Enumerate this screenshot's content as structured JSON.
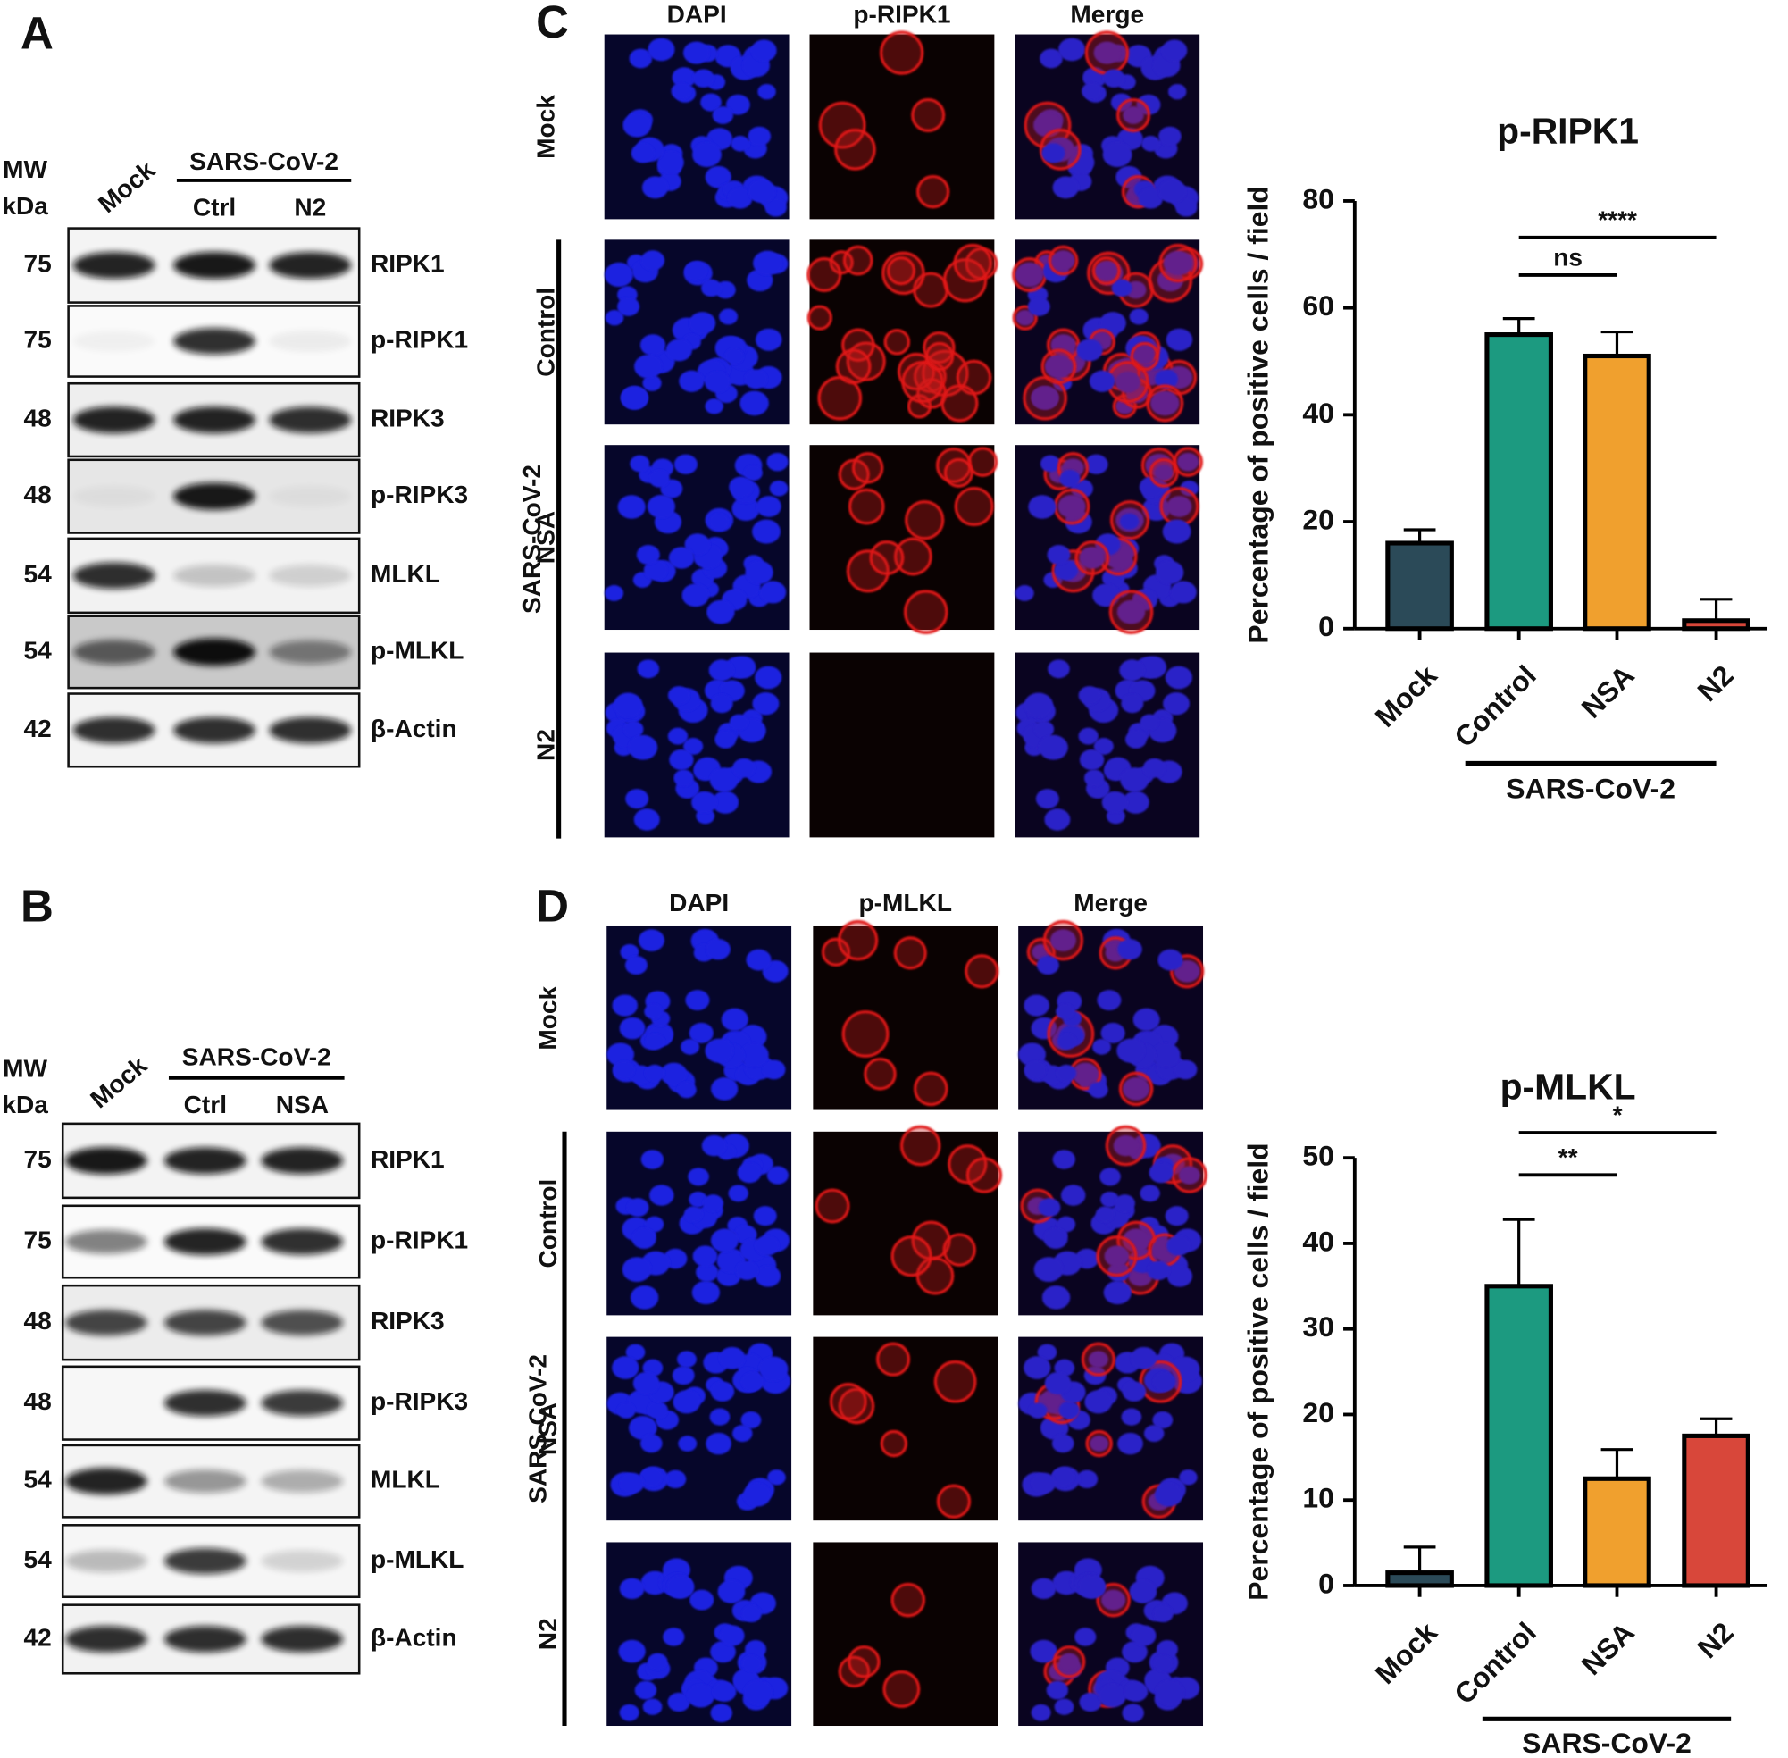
{
  "panels": {
    "A": {
      "label": "A",
      "mw_header": [
        "MW",
        "kDa"
      ],
      "lanes": [
        "Mock",
        "Ctrl",
        "N2"
      ],
      "lane_group": "SARS-CoV-2",
      "rows": [
        {
          "mw": 75,
          "protein": "RIPK1"
        },
        {
          "mw": 75,
          "protein": "p-RIPK1"
        },
        {
          "mw": 48,
          "protein": "RIPK3"
        },
        {
          "mw": 48,
          "protein": "p-RIPK3"
        },
        {
          "mw": 54,
          "protein": "MLKL"
        },
        {
          "mw": 54,
          "protein": "p-MLKL"
        },
        {
          "mw": 42,
          "protein": "β-Actin"
        }
      ]
    },
    "B": {
      "label": "B",
      "mw_header": [
        "MW",
        "kDa"
      ],
      "lanes": [
        "Mock",
        "Ctrl",
        "NSA"
      ],
      "lane_group": "SARS-CoV-2",
      "rows": [
        {
          "mw": 75,
          "protein": "RIPK1"
        },
        {
          "mw": 75,
          "protein": "p-RIPK1"
        },
        {
          "mw": 48,
          "protein": "RIPK3"
        },
        {
          "mw": 48,
          "protein": "p-RIPK3"
        },
        {
          "mw": 54,
          "protein": "MLKL"
        },
        {
          "mw": 54,
          "protein": "p-MLKL"
        },
        {
          "mw": 42,
          "protein": "β-Actin"
        }
      ]
    },
    "C": {
      "label": "C",
      "columns": [
        "DAPI",
        "p-RIPK1",
        "Merge"
      ],
      "rows": [
        "Mock",
        "Control",
        "NSA",
        "N2"
      ],
      "row_group": "SARS-CoV-2"
    },
    "D": {
      "label": "D",
      "columns": [
        "DAPI",
        "p-MLKL",
        "Merge"
      ],
      "rows": [
        "Mock",
        "Control",
        "NSA",
        "N2"
      ],
      "row_group": "SARS-CoV-2"
    }
  },
  "chart_data": [
    {
      "type": "bar",
      "title": "p-RIPK1",
      "ylabel": "Percentage of positive cells / field",
      "categories": [
        "Mock",
        "Control",
        "NSA",
        "N2"
      ],
      "values": [
        16,
        55,
        51,
        1.5
      ],
      "errors": [
        2.5,
        3,
        4.5,
        4
      ],
      "colors": [
        "#2b4a58",
        "#1c9a80",
        "#f0a02e",
        "#d8473a"
      ],
      "ylim": [
        0,
        80
      ],
      "yticks": [
        0,
        20,
        40,
        60,
        80
      ],
      "annotations": [
        "****",
        "ns"
      ],
      "group_label": "SARS-CoV-2"
    },
    {
      "type": "bar",
      "title": "p-MLKL",
      "ylabel": "Percentage of positive cells / field",
      "categories": [
        "Mock",
        "Control",
        "NSA",
        "N2"
      ],
      "values": [
        1.5,
        35,
        12.5,
        17.5
      ],
      "errors": [
        3,
        7.8,
        3.4,
        2
      ],
      "colors": [
        "#2b4a58",
        "#1c9a80",
        "#f0a02e",
        "#d8473a"
      ],
      "ylim": [
        0,
        50
      ],
      "yticks": [
        0,
        10,
        20,
        30,
        40,
        50
      ],
      "annotations": [
        "*",
        "**"
      ],
      "group_label": "SARS-CoV-2"
    }
  ]
}
